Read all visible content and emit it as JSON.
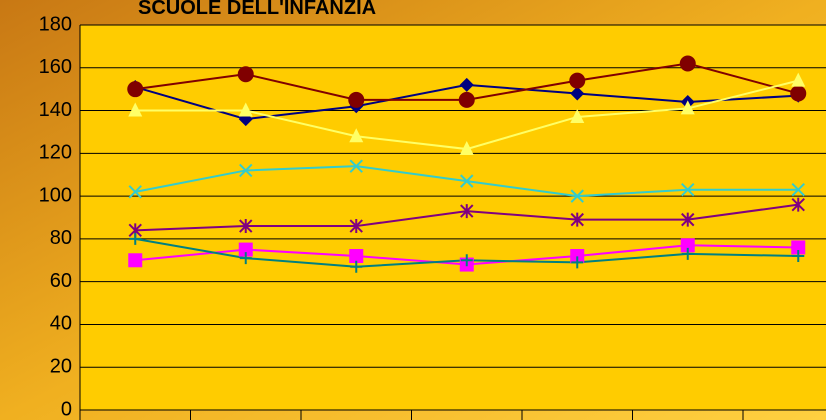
{
  "chart_data": {
    "type": "line",
    "title": "SCUOLE DELL'INFANZIA",
    "categories": [
      null,
      null,
      null,
      null,
      null,
      null,
      null
    ],
    "ylim": [
      0,
      180
    ],
    "yticks": [
      0,
      20,
      40,
      60,
      80,
      100,
      120,
      140,
      160,
      180
    ],
    "grid": true,
    "series": [
      {
        "color": "#000080",
        "marker": "diamond",
        "values": [
          151,
          136,
          142,
          152,
          148,
          144,
          147
        ]
      },
      {
        "color": "#800000",
        "marker": "circle",
        "values": [
          150,
          157,
          145,
          145,
          154,
          162,
          148
        ]
      },
      {
        "color": "#FFFF66",
        "marker": "triangle",
        "values": [
          140,
          140,
          128,
          122,
          137,
          141,
          154
        ]
      },
      {
        "color": "#33CCCC",
        "marker": "x",
        "values": [
          102,
          112,
          114,
          107,
          100,
          103,
          103
        ]
      },
      {
        "color": "#800080",
        "marker": "star",
        "values": [
          84,
          86,
          86,
          93,
          89,
          89,
          96
        ]
      },
      {
        "color": "#FF00FF",
        "marker": "square",
        "values": [
          70,
          75,
          72,
          68,
          72,
          77,
          76
        ]
      },
      {
        "color": "#008080",
        "marker": "plus",
        "values": [
          80,
          71,
          67,
          70,
          69,
          73,
          72
        ]
      }
    ]
  }
}
